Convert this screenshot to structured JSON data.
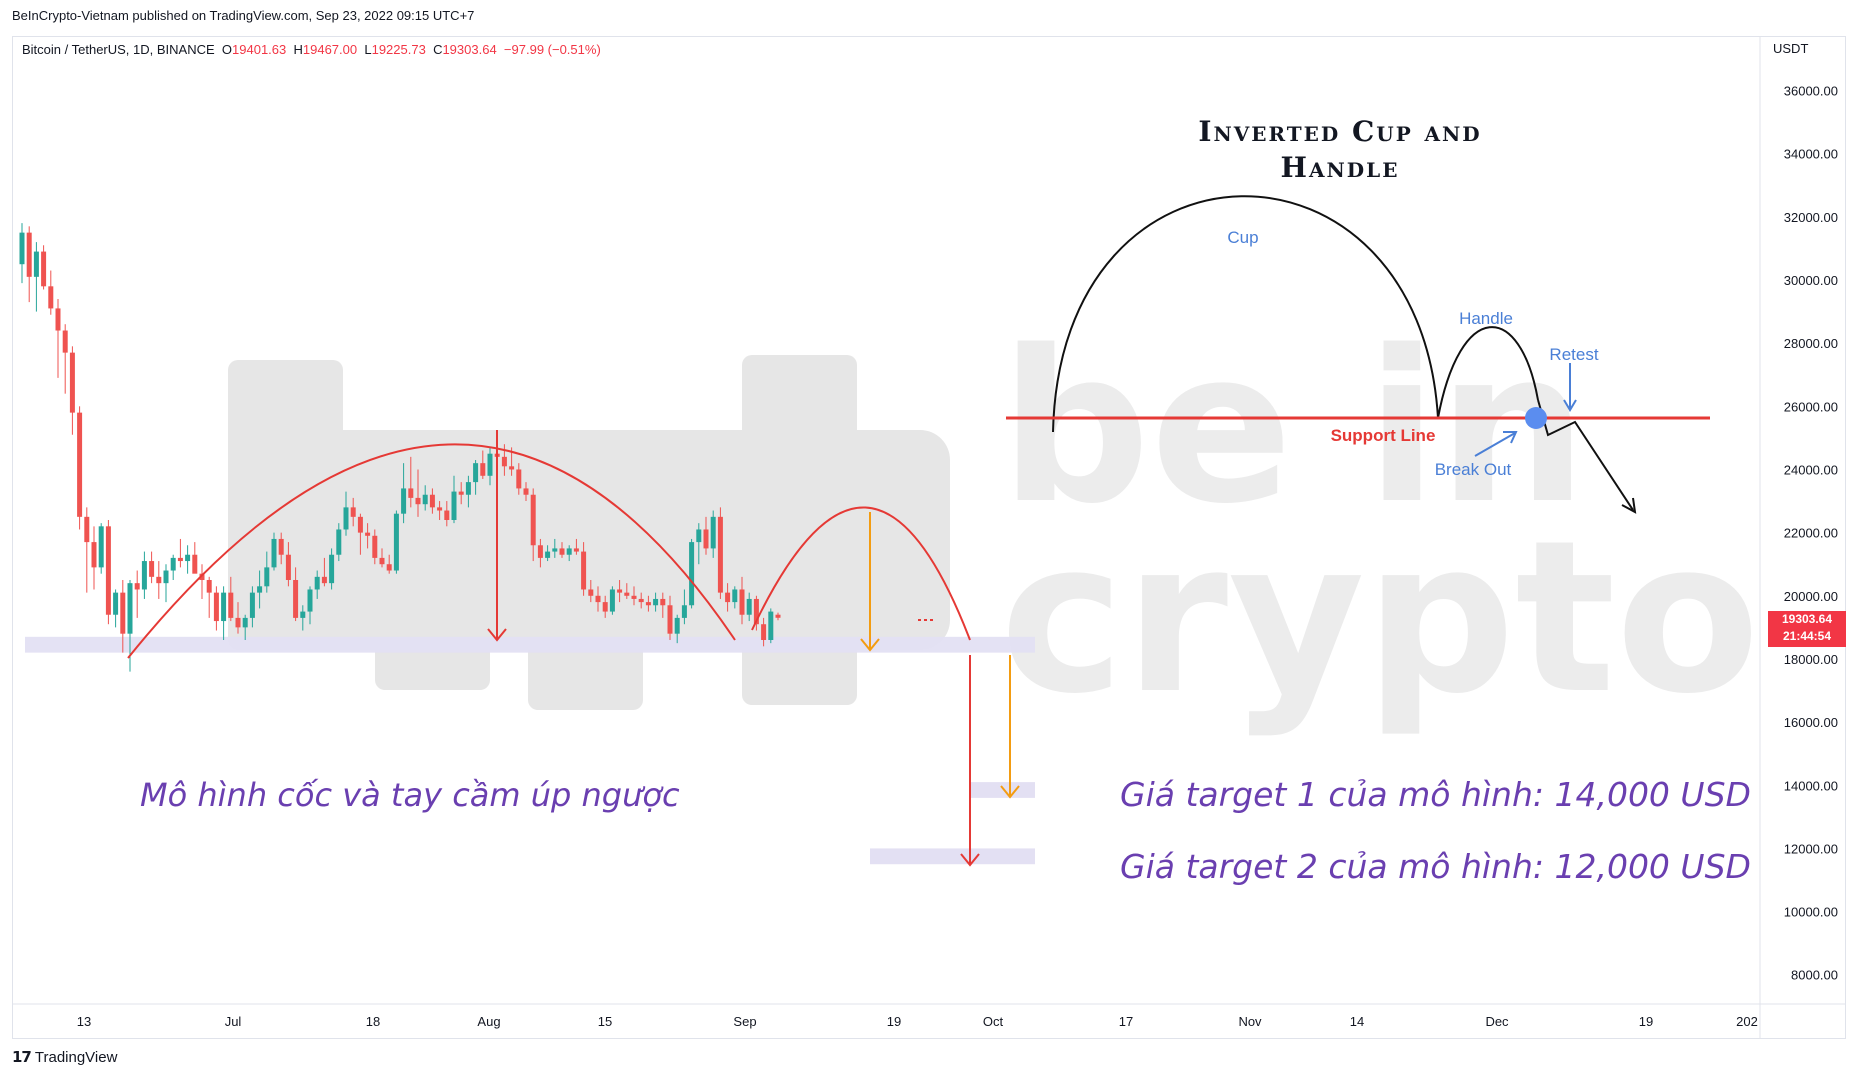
{
  "publish_line": "BeInCrypto-Vietnam published on TradingView.com, Sep 23, 2022 09:15 UTC+7",
  "header": {
    "symbol": "Bitcoin / TetherUS, 1D, BINANCE",
    "o_label": "O",
    "o": "19401.63",
    "h_label": "H",
    "h": "19467.00",
    "l_label": "L",
    "l": "19225.73",
    "c_label": "C",
    "c": "19303.64",
    "change": "−97.99 (−0.51%)"
  },
  "footer": {
    "brand": "TradingView",
    "logo_icon": "tradingview-logo-icon"
  },
  "watermark": {
    "line1": "be in",
    "line2": "crypto"
  },
  "price_tag": {
    "price": "19303.64",
    "countdown": "21:44:54",
    "color": "#f23645"
  },
  "annotations": {
    "pattern_title_vi": "Mô hình cốc và tay cầm úp ngược",
    "target1": "Giá target 1 của mô hình: 14,000 USD",
    "target2": "Giá target 2 của mô hình: 12,000 USD",
    "text_color": "#6a3fb0"
  },
  "diagram": {
    "title_line1": "Inverted Cup and",
    "title_line2": "Handle",
    "cup": "Cup",
    "handle": "Handle",
    "retest": "Retest",
    "support": "Support Line",
    "breakout": "Break Out"
  },
  "chart_data": {
    "type": "candlestick",
    "currency_label": "USDT",
    "y_ticks": [
      "36000.00",
      "34000.00",
      "32000.00",
      "30000.00",
      "28000.00",
      "26000.00",
      "24000.00",
      "22000.00",
      "20000.00",
      "18000.00",
      "16000.00",
      "14000.00",
      "12000.00",
      "10000.00",
      "8000.00"
    ],
    "ylim": [
      7200,
      37600
    ],
    "x_ticks": [
      "13",
      "Jul",
      "18",
      "Aug",
      "15",
      "Sep",
      "19",
      "Oct",
      "17",
      "Nov",
      "14",
      "Dec",
      "19",
      "202"
    ],
    "colors": {
      "up": "#26a69a",
      "down": "#ef5350"
    },
    "support_zone": [
      18200,
      18700
    ],
    "target_zones": [
      [
        13600,
        14100
      ],
      [
        11500,
        12000
      ]
    ],
    "candles": [
      [
        30500,
        31800,
        29900,
        31500
      ],
      [
        31500,
        31700,
        29300,
        30100
      ],
      [
        30100,
        31200,
        29000,
        30900
      ],
      [
        30900,
        31100,
        29700,
        29800
      ],
      [
        29800,
        30300,
        28900,
        29100
      ],
      [
        29100,
        29400,
        26900,
        28400
      ],
      [
        28400,
        28600,
        26400,
        27700
      ],
      [
        27700,
        27900,
        25100,
        25800
      ],
      [
        25800,
        26000,
        22100,
        22500
      ],
      [
        22500,
        22800,
        20100,
        21700
      ],
      [
        21700,
        22200,
        20200,
        20900
      ],
      [
        20900,
        22300,
        20700,
        22200
      ],
      [
        22200,
        22400,
        19100,
        19400
      ],
      [
        19400,
        20200,
        19000,
        20100
      ],
      [
        20100,
        20500,
        18200,
        18800
      ],
      [
        18800,
        20500,
        17600,
        20400
      ],
      [
        20400,
        20800,
        19300,
        20200
      ],
      [
        20200,
        21400,
        19900,
        21100
      ],
      [
        21100,
        21400,
        20400,
        20600
      ],
      [
        20600,
        21100,
        19900,
        20400
      ],
      [
        20400,
        21000,
        19800,
        20800
      ],
      [
        20800,
        21300,
        20500,
        21200
      ],
      [
        21200,
        21800,
        20900,
        21100
      ],
      [
        21100,
        21600,
        20700,
        21300
      ],
      [
        21300,
        21700,
        20900,
        20700
      ],
      [
        20700,
        21000,
        19900,
        20500
      ],
      [
        20500,
        20600,
        19300,
        20100
      ],
      [
        20100,
        20300,
        18900,
        19200
      ],
      [
        19200,
        20300,
        18600,
        20100
      ],
      [
        20100,
        20600,
        19200,
        19300
      ],
      [
        19300,
        19800,
        18800,
        19000
      ],
      [
        19000,
        19400,
        18600,
        19300
      ],
      [
        19300,
        20300,
        19000,
        20100
      ],
      [
        20100,
        20800,
        19600,
        20300
      ],
      [
        20300,
        21400,
        20100,
        20900
      ],
      [
        20900,
        22000,
        20800,
        21800
      ],
      [
        21800,
        22000,
        21000,
        21300
      ],
      [
        21300,
        21700,
        20300,
        20500
      ],
      [
        20500,
        20900,
        19200,
        19300
      ],
      [
        19300,
        19700,
        18900,
        19500
      ],
      [
        19500,
        20300,
        19100,
        20200
      ],
      [
        20200,
        20800,
        19900,
        20600
      ],
      [
        20600,
        21200,
        20300,
        20400
      ],
      [
        20400,
        21500,
        20200,
        21300
      ],
      [
        21300,
        22300,
        21100,
        22100
      ],
      [
        22100,
        23300,
        21900,
        22800
      ],
      [
        22800,
        23100,
        22200,
        22500
      ],
      [
        22500,
        22600,
        21300,
        22000
      ],
      [
        22000,
        22300,
        21500,
        21900
      ],
      [
        21900,
        22100,
        21000,
        21200
      ],
      [
        21200,
        21500,
        20900,
        21000
      ],
      [
        21000,
        21300,
        20700,
        20800
      ],
      [
        20800,
        22700,
        20700,
        22600
      ],
      [
        22600,
        24200,
        22300,
        23400
      ],
      [
        23400,
        24400,
        22800,
        23100
      ],
      [
        23100,
        24000,
        22500,
        22900
      ],
      [
        22900,
        23500,
        22700,
        23200
      ],
      [
        23200,
        23400,
        22600,
        22800
      ],
      [
        22800,
        23000,
        22400,
        22700
      ],
      [
        22700,
        23000,
        22200,
        22400
      ],
      [
        22400,
        23800,
        22300,
        23300
      ],
      [
        23300,
        23600,
        22900,
        23200
      ],
      [
        23200,
        23800,
        22800,
        23600
      ],
      [
        23600,
        24300,
        23200,
        24200
      ],
      [
        24200,
        24600,
        23700,
        23800
      ],
      [
        23800,
        24700,
        23500,
        24500
      ],
      [
        24500,
        25200,
        24000,
        24400
      ],
      [
        24400,
        24800,
        23800,
        24100
      ],
      [
        24100,
        24700,
        23800,
        24000
      ],
      [
        24000,
        24200,
        23200,
        23400
      ],
      [
        23400,
        23600,
        23000,
        23200
      ],
      [
        23200,
        23400,
        21100,
        21600
      ],
      [
        21600,
        21800,
        20900,
        21200
      ],
      [
        21200,
        21600,
        21100,
        21400
      ],
      [
        21400,
        21800,
        21200,
        21500
      ],
      [
        21500,
        21700,
        21200,
        21300
      ],
      [
        21300,
        21600,
        21100,
        21500
      ],
      [
        21500,
        21800,
        21300,
        21400
      ],
      [
        21400,
        21700,
        20000,
        20200
      ],
      [
        20200,
        20500,
        19800,
        20000
      ],
      [
        20000,
        20300,
        19500,
        19800
      ],
      [
        19800,
        20000,
        19300,
        19500
      ],
      [
        19500,
        20300,
        19400,
        20200
      ],
      [
        20200,
        20500,
        19800,
        20100
      ],
      [
        20100,
        20400,
        19900,
        20000
      ],
      [
        20000,
        20300,
        19700,
        19900
      ],
      [
        19900,
        20100,
        19600,
        19800
      ],
      [
        19800,
        20000,
        19500,
        19700
      ],
      [
        19700,
        20100,
        19500,
        19900
      ],
      [
        19900,
        20100,
        19300,
        19700
      ],
      [
        19700,
        20000,
        18600,
        18800
      ],
      [
        18800,
        19400,
        18500,
        19300
      ],
      [
        19300,
        20200,
        19100,
        19700
      ],
      [
        19700,
        21800,
        19600,
        21700
      ],
      [
        21700,
        22300,
        21000,
        22100
      ],
      [
        22100,
        22500,
        21300,
        21500
      ],
      [
        21500,
        22700,
        21200,
        22500
      ],
      [
        22500,
        22800,
        19900,
        20100
      ],
      [
        20100,
        20400,
        19500,
        19800
      ],
      [
        19800,
        20300,
        19600,
        20200
      ],
      [
        20200,
        20600,
        19100,
        19400
      ],
      [
        19400,
        20100,
        19200,
        19900
      ],
      [
        19900,
        20000,
        18900,
        19100
      ],
      [
        19100,
        19300,
        18400,
        18600
      ],
      [
        18600,
        19600,
        18500,
        19500
      ],
      [
        19401.63,
        19467,
        19225.73,
        19303.64
      ]
    ]
  }
}
